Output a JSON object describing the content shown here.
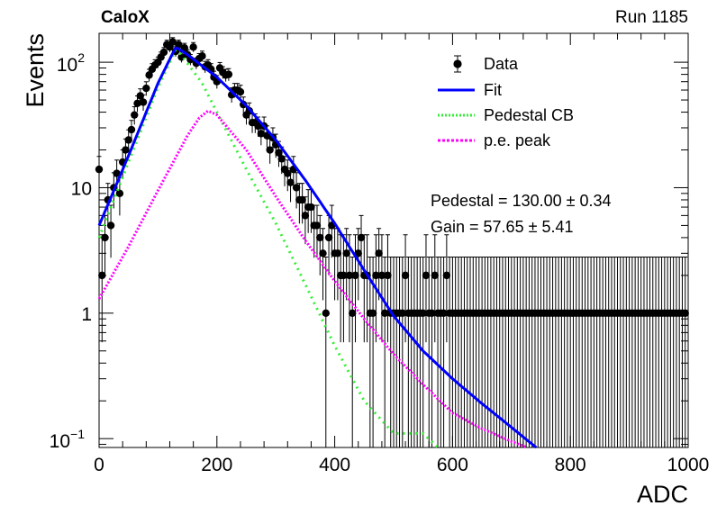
{
  "header": {
    "left": "CaloX",
    "right": "Run 1185"
  },
  "chart_data": {
    "type": "scatter",
    "xlabel": "ADC",
    "ylabel": "Events",
    "xlim": [
      0,
      1000
    ],
    "ylim": [
      0.085,
      170
    ],
    "yscale": "log",
    "x_ticks": [
      "0",
      "200",
      "400",
      "600",
      "800",
      "1000"
    ],
    "y_ticks": [
      {
        "value": 0.1,
        "base": "10",
        "exp": "−1"
      },
      {
        "value": 1,
        "base": "1",
        "exp": ""
      },
      {
        "value": 10,
        "base": "10",
        "exp": ""
      },
      {
        "value": 100,
        "base": "10",
        "exp": "2"
      }
    ],
    "legend": {
      "position": "top-right",
      "entries": [
        {
          "label": "Data",
          "style": "marker"
        },
        {
          "label": "Fit",
          "style": "line",
          "color": "#0000ff"
        },
        {
          "label": "Pedestal CB",
          "style": "dotted",
          "color": "#33ee33"
        },
        {
          "label": "p.e. peak",
          "style": "dotted",
          "color": "#ff00ff"
        }
      ]
    },
    "annotations": [
      "Pedestal = 130.00 ± 0.34",
      "Gain = 57.65 ± 5.41"
    ],
    "series": [
      {
        "name": "Data",
        "x": [
          0,
          5,
          10,
          15,
          20,
          25,
          30,
          35,
          40,
          45,
          50,
          55,
          60,
          65,
          70,
          75,
          80,
          85,
          90,
          95,
          100,
          105,
          110,
          115,
          120,
          125,
          130,
          135,
          140,
          145,
          150,
          155,
          160,
          165,
          170,
          175,
          180,
          185,
          190,
          195,
          200,
          205,
          210,
          215,
          220,
          225,
          230,
          235,
          240,
          245,
          250,
          255,
          260,
          265,
          270,
          275,
          280,
          285,
          290,
          295,
          300,
          305,
          310,
          315,
          320,
          325,
          330,
          335,
          340,
          345,
          350,
          355,
          360,
          365,
          370,
          375,
          380,
          385,
          390,
          395,
          400,
          405,
          410,
          415,
          420,
          425,
          430,
          435,
          440,
          445,
          450,
          455,
          460,
          465,
          470,
          475,
          480,
          485,
          490,
          495,
          500,
          505,
          510,
          515,
          520,
          525,
          530,
          535,
          540,
          545,
          550,
          555,
          560,
          565,
          570,
          575,
          580,
          585,
          590,
          595,
          600,
          605,
          610,
          615,
          620,
          625,
          630,
          635,
          640,
          645,
          650,
          655,
          660,
          665,
          670,
          675,
          680,
          685,
          690,
          695,
          700,
          705,
          710,
          715,
          720,
          725,
          730,
          735,
          740,
          745,
          750,
          755,
          760,
          765,
          770,
          775,
          780,
          785,
          790,
          795,
          800,
          805,
          810,
          815,
          820,
          825,
          830,
          835,
          840,
          845,
          850,
          855,
          860,
          865,
          870,
          875,
          880,
          885,
          890,
          895,
          900,
          905,
          910,
          915,
          920,
          925,
          930,
          935,
          940,
          945,
          950,
          955,
          960,
          965,
          970,
          975,
          980,
          985,
          990,
          995
        ],
        "y": [
          14,
          2,
          4,
          8,
          5,
          10,
          13,
          9,
          16,
          20,
          24,
          29,
          38,
          47,
          54,
          48,
          62,
          79,
          88,
          95,
          100,
          110,
          120,
          138,
          132,
          145,
          122,
          138,
          110,
          130,
          115,
          105,
          132,
          98,
          107,
          112,
          92,
          95,
          88,
          76,
          70,
          90,
          83,
          79,
          80,
          55,
          60,
          60,
          58,
          46,
          38,
          41,
          33,
          33,
          31,
          27,
          31,
          26,
          20,
          25,
          22,
          19,
          17,
          14,
          13,
          11,
          14,
          10,
          8,
          8,
          6,
          7,
          7,
          5,
          5,
          4,
          3,
          1,
          4,
          5,
          3,
          3,
          2,
          2,
          3,
          2,
          1,
          2,
          3,
          4,
          2,
          2,
          1,
          1,
          2,
          3,
          2,
          1,
          2,
          1,
          1,
          1,
          1,
          1,
          2,
          1,
          1,
          1,
          1,
          1,
          1,
          2,
          1,
          1,
          2,
          1,
          1,
          1,
          2,
          1,
          1,
          1,
          1,
          1,
          1,
          1,
          1,
          1,
          1,
          1,
          1,
          1,
          1,
          1,
          1,
          1,
          1,
          1,
          1,
          1,
          1,
          1,
          1,
          1,
          1,
          1,
          1,
          1,
          1,
          1,
          1,
          1,
          1,
          1,
          1,
          1,
          1,
          1,
          1,
          1,
          1,
          1,
          1,
          1,
          1,
          1,
          1,
          1,
          1,
          1,
          1,
          1,
          1,
          1,
          1,
          1,
          1,
          1,
          1,
          1,
          1,
          1,
          1,
          1,
          1,
          1,
          1,
          1,
          1,
          1,
          1,
          1,
          1,
          1,
          1,
          1,
          1,
          1,
          1,
          1
        ],
        "marker_color": "#000000"
      },
      {
        "name": "Fit",
        "color": "#0000ff",
        "x": [
          0,
          50,
          100,
          125,
          130,
          135,
          150,
          200,
          250,
          300,
          350,
          400,
          450,
          500,
          550,
          600,
          650,
          700,
          742
        ],
        "y": [
          5,
          18,
          68,
          118,
          130,
          128,
          115,
          76,
          45,
          24,
          11.5,
          5.2,
          2.2,
          0.95,
          0.5,
          0.3,
          0.19,
          0.123,
          0.085
        ]
      },
      {
        "name": "Pedestal CB",
        "color": "#33ee33",
        "x": [
          0,
          50,
          100,
          125,
          130,
          135,
          150,
          175,
          200,
          250,
          300,
          350,
          400,
          450,
          500,
          550,
          575
        ],
        "y": [
          4,
          16,
          63,
          112,
          125,
          122,
          98,
          68,
          40,
          14,
          5.2,
          1.7,
          0.55,
          0.2,
          0.11,
          0.11,
          0.085
        ]
      },
      {
        "name": "p.e. peak",
        "color": "#ff00ff",
        "x": [
          0,
          50,
          100,
          150,
          170,
          185,
          200,
          250,
          300,
          350,
          400,
          450,
          500,
          550,
          600,
          650,
          700,
          727
        ],
        "y": [
          1.3,
          3.4,
          9.5,
          26,
          36,
          41,
          38,
          20,
          8.5,
          3.8,
          1.8,
          0.9,
          0.47,
          0.27,
          0.16,
          0.12,
          0.095,
          0.085
        ]
      }
    ]
  }
}
